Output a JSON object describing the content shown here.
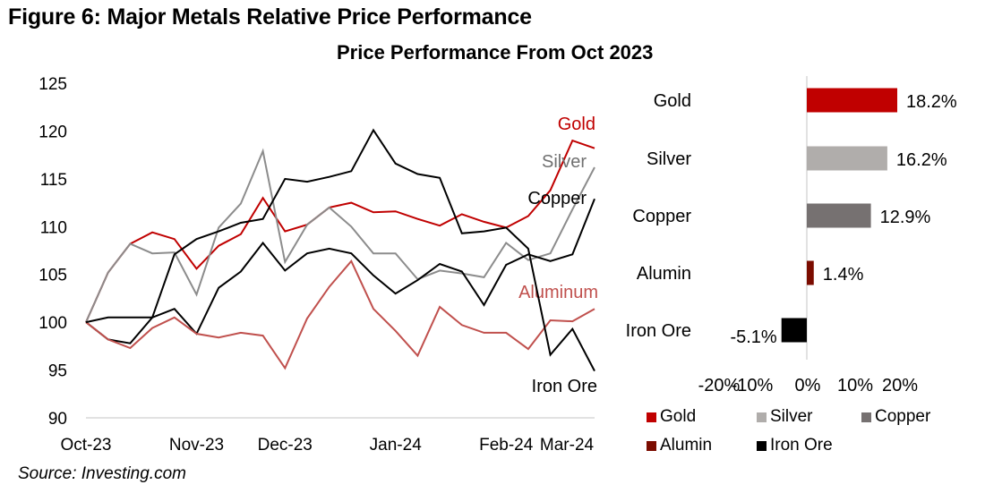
{
  "figure_title": "Figure 6: Major Metals Relative Price Performance",
  "source": "Source: Investing.com",
  "chart_data": [
    {
      "type": "line",
      "title": "",
      "xlabel": "",
      "ylabel": "",
      "ylim": [
        90,
        125
      ],
      "y_ticks": [
        90,
        95,
        100,
        105,
        110,
        115,
        120,
        125
      ],
      "x_tick_labels": [
        "Oct-23",
        "Nov-23",
        "Dec-23",
        "Jan-24",
        "Feb-24",
        "Mar-24"
      ],
      "x_tick_index": [
        0,
        5,
        9,
        14,
        19,
        23
      ],
      "n_points": 24,
      "grid": "baseline only",
      "legend": "inline labels at right end",
      "series": [
        {
          "name": "Gold",
          "label": "Gold",
          "color": "#c00000",
          "values": [
            100,
            105.2,
            108.2,
            109.4,
            108.7,
            105.6,
            108.0,
            109.2,
            113.0,
            109.5,
            110.2,
            112.0,
            112.5,
            111.5,
            111.6,
            110.8,
            110.1,
            111.3,
            110.5,
            109.9,
            111.1,
            113.8,
            119.0,
            118.2
          ]
        },
        {
          "name": "Silver",
          "label": "Silver",
          "color": "#8c8c8c",
          "values": [
            100,
            105.2,
            108.2,
            107.2,
            107.3,
            102.9,
            109.9,
            112.4,
            117.9,
            106.3,
            110.2,
            112.0,
            110.0,
            107.2,
            107.2,
            104.5,
            105.4,
            105.1,
            104.7,
            108.3,
            106.5,
            107.2,
            111.8,
            116.2
          ]
        },
        {
          "name": "Copper",
          "label": "Copper",
          "color": "#000000",
          "values": [
            100,
            98.2,
            97.8,
            100.5,
            101.4,
            98.8,
            103.6,
            105.3,
            108.3,
            105.4,
            107.2,
            107.7,
            107.2,
            104.9,
            103.0,
            104.4,
            106.1,
            105.3,
            101.8,
            106.0,
            107.1,
            106.4,
            107.1,
            112.9
          ]
        },
        {
          "name": "Aluminum",
          "label": "Aluminum",
          "color": "#c0504d",
          "values": [
            100,
            98.2,
            97.3,
            99.4,
            100.5,
            98.8,
            98.4,
            98.9,
            98.6,
            95.2,
            100.4,
            103.7,
            106.4,
            101.4,
            99.1,
            96.5,
            101.6,
            99.7,
            98.9,
            98.9,
            97.2,
            100.2,
            100.1,
            101.4
          ]
        },
        {
          "name": "Iron Ore",
          "label": "Iron Ore",
          "color": "#000000",
          "values": [
            100,
            100.5,
            100.5,
            100.5,
            107.1,
            108.7,
            109.5,
            110.4,
            110.8,
            115.0,
            114.7,
            115.2,
            115.8,
            120.1,
            116.6,
            115.5,
            115.1,
            109.3,
            109.5,
            109.9,
            107.7,
            96.6,
            99.3,
            94.9
          ]
        }
      ]
    },
    {
      "type": "bar",
      "orientation": "horizontal",
      "title": "Price Performance From Oct 2023",
      "categories": [
        "Gold",
        "Silver",
        "Copper",
        "Alumin",
        "Iron Ore"
      ],
      "values": [
        18.2,
        16.2,
        12.9,
        1.4,
        -5.1
      ],
      "value_labels": [
        "18.2%",
        "16.2%",
        "12.9%",
        "1.4%",
        "-5.1%"
      ],
      "colors": [
        "#c00000",
        "#b0adab",
        "#767171",
        "#7b0c00",
        "#000000"
      ],
      "xlim": [
        -20,
        20
      ],
      "x_ticks": [
        -20,
        -10,
        0,
        10,
        20
      ],
      "x_tick_labels": [
        "-20%",
        "-10%",
        "0%",
        "10%",
        "20%"
      ],
      "legend": "bottom",
      "legend_entries": [
        {
          "label": "Gold",
          "color": "#c00000"
        },
        {
          "label": "Silver",
          "color": "#b0adab"
        },
        {
          "label": "Copper",
          "color": "#767171"
        },
        {
          "label": "Alumin",
          "color": "#7b0c00"
        },
        {
          "label": "Iron Ore",
          "color": "#000000"
        }
      ]
    }
  ]
}
